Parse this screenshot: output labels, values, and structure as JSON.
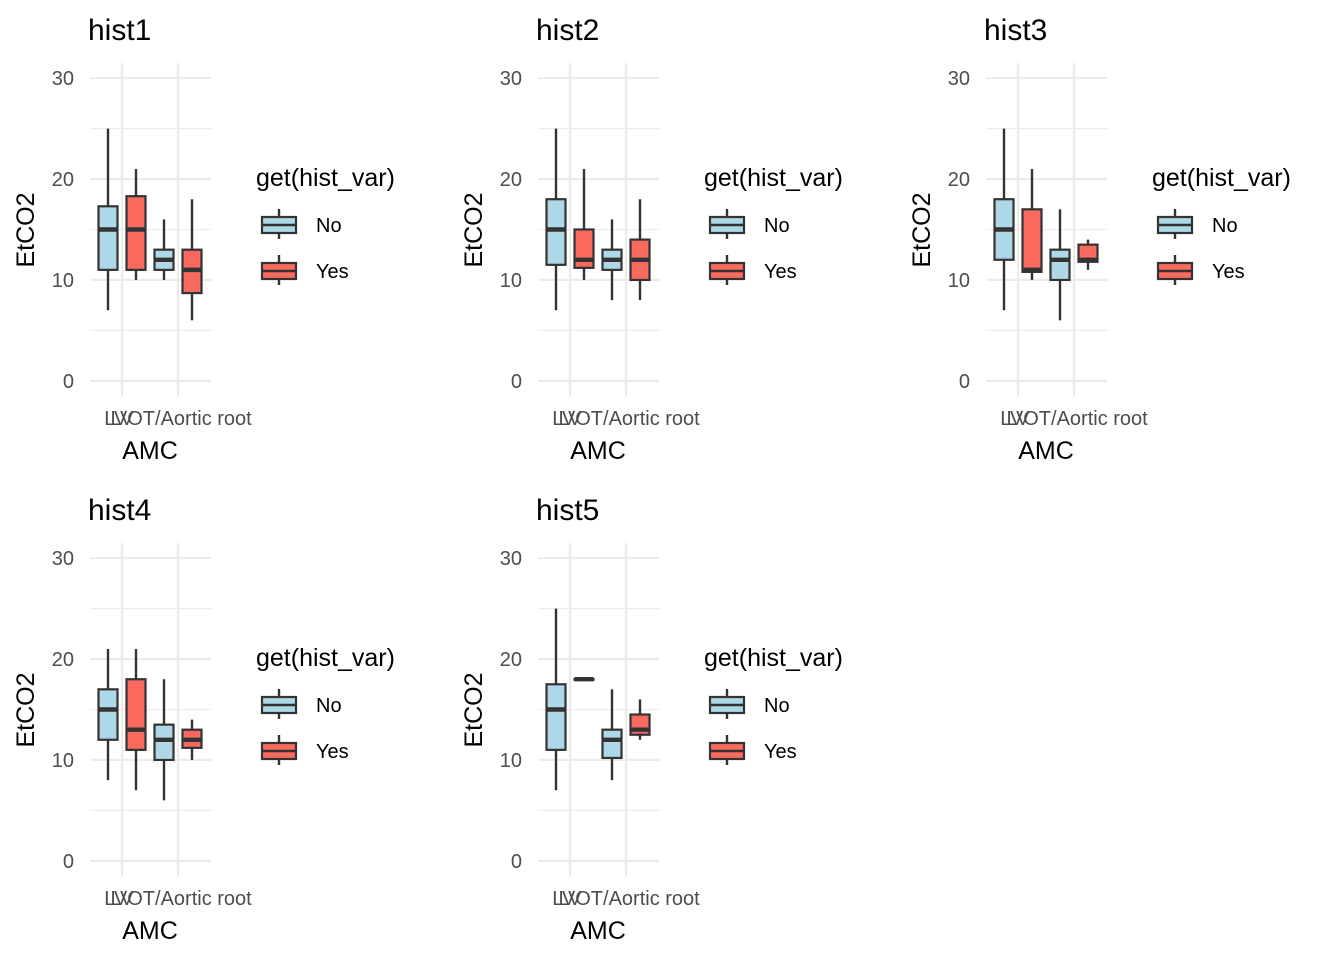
{
  "chart_data": [
    {
      "type": "boxplot",
      "title": "hist1",
      "xlabel": "AMC",
      "ylabel": "EtCO2",
      "ylim": [
        -1.5,
        31.5
      ],
      "yticks": [
        0,
        10,
        20,
        30
      ],
      "grid": true,
      "categories": [
        "LV",
        "LVOT/Aortic root"
      ],
      "legend": {
        "title": "get(hist_var)",
        "entries": [
          "No",
          "Yes"
        ],
        "position": "right"
      },
      "series": [
        {
          "name": "No",
          "color": "#ADD8E6",
          "boxes": [
            {
              "min": 7,
              "q1": 11,
              "median": 15,
              "q3": 17.3,
              "max": 25
            },
            {
              "min": 10,
              "q1": 11,
              "median": 12,
              "q3": 13,
              "max": 16
            }
          ]
        },
        {
          "name": "Yes",
          "color": "#FA6A5E",
          "boxes": [
            {
              "min": 10,
              "q1": 11,
              "median": 15,
              "q3": 18.3,
              "max": 21
            },
            {
              "min": 6,
              "q1": 8.7,
              "median": 11,
              "q3": 13,
              "max": 18
            }
          ]
        }
      ]
    },
    {
      "type": "boxplot",
      "title": "hist2",
      "xlabel": "AMC",
      "ylabel": "EtCO2",
      "ylim": [
        -1.5,
        31.5
      ],
      "yticks": [
        0,
        10,
        20,
        30
      ],
      "grid": true,
      "categories": [
        "LV",
        "LVOT/Aortic root"
      ],
      "legend": {
        "title": "get(hist_var)",
        "entries": [
          "No",
          "Yes"
        ],
        "position": "right"
      },
      "series": [
        {
          "name": "No",
          "color": "#ADD8E6",
          "boxes": [
            {
              "min": 7,
              "q1": 11.5,
              "median": 15,
              "q3": 18,
              "max": 25
            },
            {
              "min": 8,
              "q1": 11,
              "median": 12,
              "q3": 13,
              "max": 16
            }
          ]
        },
        {
          "name": "Yes",
          "color": "#FA6A5E",
          "boxes": [
            {
              "min": 10,
              "q1": 11.2,
              "median": 12,
              "q3": 15,
              "max": 21
            },
            {
              "min": 8,
              "q1": 10,
              "median": 12,
              "q3": 14,
              "max": 18
            }
          ]
        }
      ]
    },
    {
      "type": "boxplot",
      "title": "hist3",
      "xlabel": "AMC",
      "ylabel": "EtCO2",
      "ylim": [
        -1.5,
        31.5
      ],
      "yticks": [
        0,
        10,
        20,
        30
      ],
      "grid": true,
      "categories": [
        "LV",
        "LVOT/Aortic root"
      ],
      "legend": {
        "title": "get(hist_var)",
        "entries": [
          "No",
          "Yes"
        ],
        "position": "right"
      },
      "series": [
        {
          "name": "No",
          "color": "#ADD8E6",
          "boxes": [
            {
              "min": 7,
              "q1": 12,
              "median": 15,
              "q3": 18,
              "max": 25
            },
            {
              "min": 6,
              "q1": 10,
              "median": 12,
              "q3": 13,
              "max": 17
            }
          ]
        },
        {
          "name": "Yes",
          "color": "#FA6A5E",
          "boxes": [
            {
              "min": 10,
              "q1": 10.8,
              "median": 11,
              "q3": 17,
              "max": 21
            },
            {
              "min": 11,
              "q1": 11.8,
              "median": 12,
              "q3": 13.5,
              "max": 14
            }
          ]
        }
      ]
    },
    {
      "type": "boxplot",
      "title": "hist4",
      "xlabel": "AMC",
      "ylabel": "EtCO2",
      "ylim": [
        -1.5,
        31.5
      ],
      "yticks": [
        0,
        10,
        20,
        30
      ],
      "grid": true,
      "categories": [
        "LV",
        "LVOT/Aortic root"
      ],
      "legend": {
        "title": "get(hist_var)",
        "entries": [
          "No",
          "Yes"
        ],
        "position": "right"
      },
      "series": [
        {
          "name": "No",
          "color": "#ADD8E6",
          "boxes": [
            {
              "min": 8,
              "q1": 12,
              "median": 15,
              "q3": 17,
              "max": 21
            },
            {
              "min": 6,
              "q1": 10,
              "median": 12,
              "q3": 13.5,
              "max": 18
            }
          ]
        },
        {
          "name": "Yes",
          "color": "#FA6A5E",
          "boxes": [
            {
              "min": 7,
              "q1": 11,
              "median": 13,
              "q3": 18,
              "max": 21
            },
            {
              "min": 10,
              "q1": 11.2,
              "median": 12,
              "q3": 13,
              "max": 14
            }
          ]
        }
      ]
    },
    {
      "type": "boxplot",
      "title": "hist5",
      "xlabel": "AMC",
      "ylabel": "EtCO2",
      "ylim": [
        -1.5,
        31.5
      ],
      "yticks": [
        0,
        10,
        20,
        30
      ],
      "grid": true,
      "categories": [
        "LV",
        "LVOT/Aortic root"
      ],
      "legend": {
        "title": "get(hist_var)",
        "entries": [
          "No",
          "Yes"
        ],
        "position": "right"
      },
      "series": [
        {
          "name": "No",
          "color": "#ADD8E6",
          "boxes": [
            {
              "min": 7,
              "q1": 11,
              "median": 15,
              "q3": 17.5,
              "max": 25
            },
            {
              "min": 8,
              "q1": 10.2,
              "median": 12,
              "q3": 13,
              "max": 17
            }
          ]
        },
        {
          "name": "Yes",
          "color": "#FA6A5E",
          "boxes": [
            {
              "min": 18,
              "q1": 18,
              "median": 18,
              "q3": 18,
              "max": 18
            },
            {
              "min": 12,
              "q1": 12.5,
              "median": 13,
              "q3": 14.5,
              "max": 16
            }
          ]
        }
      ]
    }
  ]
}
